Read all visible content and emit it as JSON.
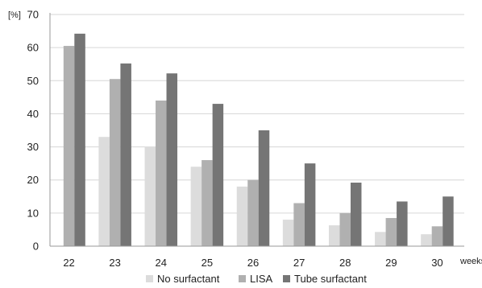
{
  "chart_data": {
    "type": "bar",
    "ylabel": "[%]",
    "xlabel": "weeks",
    "ylim": [
      0,
      70
    ],
    "yticks": [
      0,
      10,
      20,
      30,
      40,
      50,
      60,
      70
    ],
    "grid": "horizontal",
    "legend_position": "bottom",
    "categories": [
      "22",
      "23",
      "24",
      "25",
      "26",
      "27",
      "28",
      "29",
      "30"
    ],
    "series": [
      {
        "name": "No surfactant",
        "color": "#dcdcdc",
        "values": [
          0,
          33,
          30,
          24,
          18,
          8,
          6.3,
          4.3,
          3.6
        ]
      },
      {
        "name": "LISA",
        "color": "#b0b0b0",
        "values": [
          60.5,
          50.5,
          44,
          26,
          20,
          13,
          10,
          8.5,
          6
        ]
      },
      {
        "name": "Tube surfactant",
        "color": "#757575",
        "values": [
          64.2,
          55.2,
          52.2,
          43,
          35,
          25,
          19.2,
          13.5,
          15
        ]
      }
    ]
  }
}
